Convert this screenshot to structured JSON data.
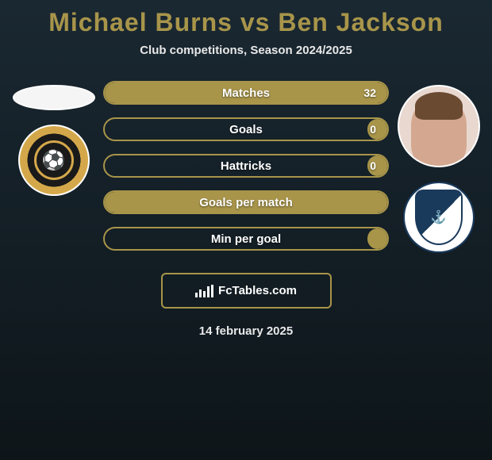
{
  "title_color": "#a8954a",
  "header": {
    "player1": "Michael Burns",
    "vs": "vs",
    "player2": "Ben Jackson",
    "subtitle": "Club competitions, Season 2024/2025"
  },
  "pill_border_color": "#a8954a",
  "stats": [
    {
      "label": "Matches",
      "value_right": "32",
      "fill_percent": 100,
      "fill_color": "#a8954a",
      "show_value": true
    },
    {
      "label": "Goals",
      "value_right": "0",
      "fill_percent": 7,
      "fill_color": "#a8954a",
      "show_value": true
    },
    {
      "label": "Hattricks",
      "value_right": "0",
      "fill_percent": 7,
      "fill_color": "#a8954a",
      "show_value": true
    },
    {
      "label": "Goals per match",
      "value_right": "",
      "fill_percent": 100,
      "fill_color": "#a8954a",
      "show_value": false
    },
    {
      "label": "Min per goal",
      "value_right": "",
      "fill_percent": 7,
      "fill_color": "#a8954a",
      "show_value": false
    }
  ],
  "footer": {
    "brand": "FcTables.com",
    "date": "14 february 2025"
  },
  "left_club": "Newport County",
  "right_club": "Barrow AFC"
}
